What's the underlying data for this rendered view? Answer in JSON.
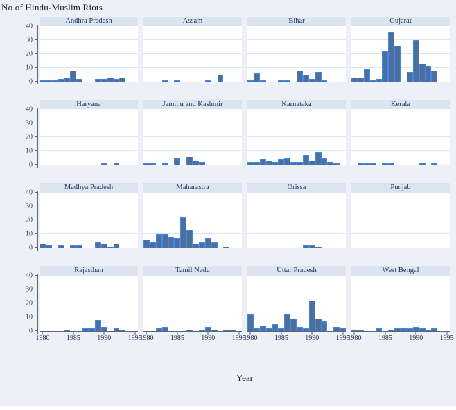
{
  "title": "No of Hindu-Muslim Riots",
  "chart_data": {
    "type": "bar",
    "title": "No of Hindu-Muslim Riots",
    "xlabel": "Year",
    "ylabel": "No of Hindu-Muslim Riots",
    "ylim": [
      0,
      40
    ],
    "yticks": [
      0,
      10,
      20,
      30,
      40
    ],
    "xticks": [
      1980,
      1985,
      1990,
      1995
    ],
    "grid": "horizontal",
    "legend": "none",
    "layout": "4x4 small multiples by state",
    "x": [
      1980,
      1981,
      1982,
      1983,
      1984,
      1985,
      1986,
      1987,
      1988,
      1989,
      1990,
      1991,
      1992,
      1993,
      1994,
      1995
    ],
    "facets": [
      {
        "name": "Andhra Pradesh",
        "values": [
          1,
          1,
          1,
          2,
          3,
          8,
          2,
          0,
          0,
          2,
          2,
          3,
          2,
          3,
          0,
          0
        ]
      },
      {
        "name": "Assam",
        "values": [
          0,
          0,
          0,
          1,
          0,
          1,
          0,
          0,
          0,
          0,
          1,
          0,
          5,
          0,
          0,
          0
        ]
      },
      {
        "name": "Bihar",
        "values": [
          1,
          6,
          1,
          0,
          0,
          1,
          1,
          0,
          8,
          5,
          2,
          7,
          1,
          0,
          0,
          0
        ]
      },
      {
        "name": "Gujarat",
        "values": [
          3,
          3,
          9,
          1,
          2,
          22,
          36,
          26,
          0,
          7,
          30,
          13,
          11,
          8,
          0,
          0
        ]
      },
      {
        "name": "Haryana",
        "values": [
          0,
          0,
          0,
          0,
          0,
          0,
          0,
          0,
          0,
          0,
          1,
          0,
          1,
          0,
          0,
          0
        ]
      },
      {
        "name": "Jammu and Kashmir",
        "values": [
          1,
          1,
          0,
          1,
          0,
          5,
          0,
          6,
          3,
          2,
          0,
          0,
          0,
          0,
          0,
          0
        ]
      },
      {
        "name": "Karnataka",
        "values": [
          2,
          2,
          4,
          3,
          2,
          4,
          5,
          2,
          2,
          7,
          3,
          9,
          5,
          2,
          1,
          0
        ]
      },
      {
        "name": "Kerala",
        "values": [
          0,
          1,
          1,
          1,
          0,
          1,
          1,
          0,
          0,
          0,
          0,
          1,
          0,
          1,
          0,
          0
        ]
      },
      {
        "name": "Madhya Pradesh",
        "values": [
          3,
          2,
          0,
          2,
          0,
          2,
          2,
          0,
          0,
          4,
          3,
          1,
          3,
          0,
          0,
          0
        ]
      },
      {
        "name": "Maharastra",
        "values": [
          6,
          4,
          10,
          10,
          8,
          7,
          22,
          13,
          3,
          4,
          7,
          4,
          0,
          1,
          0,
          0
        ]
      },
      {
        "name": "Orissa",
        "values": [
          0,
          0,
          0,
          0,
          0,
          0,
          0,
          0,
          0,
          2,
          2,
          1,
          0,
          0,
          0,
          0
        ]
      },
      {
        "name": "Punjab",
        "values": [
          0,
          0,
          0,
          0,
          0,
          0,
          0,
          0,
          0,
          0,
          0,
          0,
          0,
          0,
          0,
          0
        ]
      },
      {
        "name": "Rajasthan",
        "values": [
          0,
          0,
          0,
          0,
          1,
          0,
          0,
          2,
          2,
          8,
          3,
          0,
          2,
          1,
          0,
          0
        ]
      },
      {
        "name": "Tamil Nadu",
        "values": [
          0,
          0,
          2,
          3,
          0,
          0,
          0,
          1,
          0,
          1,
          3,
          1,
          0,
          1,
          1,
          0
        ]
      },
      {
        "name": "Uttar Pradesh",
        "values": [
          12,
          2,
          4,
          2,
          5,
          2,
          12,
          9,
          3,
          2,
          22,
          9,
          7,
          0,
          3,
          2
        ]
      },
      {
        "name": "West Bengal",
        "values": [
          1,
          1,
          0,
          0,
          2,
          0,
          1,
          2,
          2,
          2,
          3,
          2,
          1,
          2,
          0,
          0
        ]
      }
    ],
    "colors": {
      "bar_fill": "#4e6f99",
      "bar_border": "#3e86f0",
      "facet_header_bg": "#dce4ef",
      "facet_header_text": "#21345d",
      "plot_bg": "#ffffff",
      "gridline": "#dbe7f2",
      "page_bg": "#edf1f7",
      "axis": "#5f6572",
      "tick_text": "#1c2c55"
    }
  }
}
